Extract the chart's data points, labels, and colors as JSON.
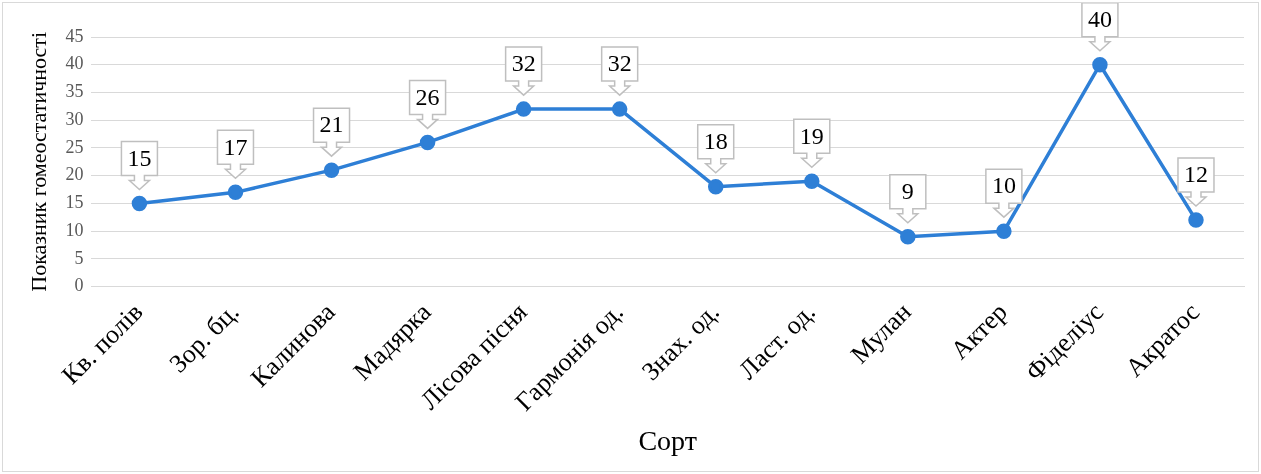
{
  "chart_data": {
    "type": "line",
    "xlabel": "Сорт",
    "ylabel": "Показник гомеостатичності",
    "categories": [
      "Кв. полів",
      "Зор. бц.",
      "Калинова",
      "Мадярка",
      "Лісова пісня",
      "Гармонія од.",
      "Знах. од.",
      "Ласт. од.",
      "Мулан",
      "Актер",
      "Фіделіус",
      "Акратос"
    ],
    "series": [
      {
        "color": "#2e7fd6",
        "values": [
          15,
          17,
          21,
          26,
          32,
          32,
          18,
          19,
          9,
          10,
          40,
          12
        ]
      }
    ],
    "ylim": [
      0,
      45
    ],
    "yticks": [
      0,
      5,
      10,
      15,
      20,
      25,
      30,
      35,
      40,
      45
    ],
    "grid": "y",
    "legend": false,
    "marker": "circle",
    "line_style": "solid",
    "data_labels": true
  }
}
